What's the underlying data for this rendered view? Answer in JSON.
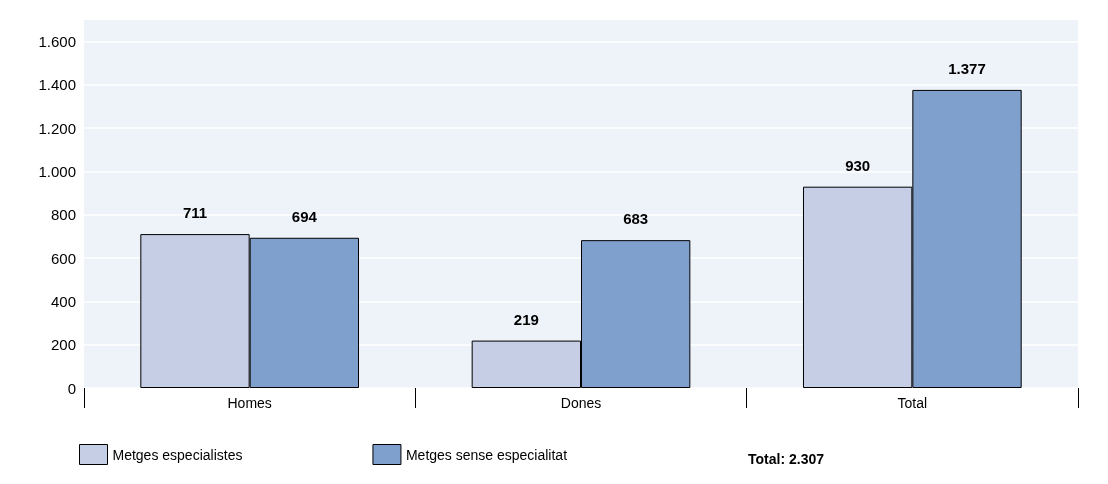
{
  "chart_data": {
    "type": "bar",
    "categories": [
      "Homes",
      "Dones",
      "Total"
    ],
    "series": [
      {
        "name": "Metges especialistes",
        "color": "#c5cee5",
        "values": [
          711,
          219,
          930
        ],
        "value_labels": [
          "711",
          "219",
          "930"
        ]
      },
      {
        "name": "Metges sense especialitat",
        "color": "#7f9fcd",
        "values": [
          694,
          683,
          1377
        ],
        "value_labels": [
          "694",
          "683",
          "1.377"
        ]
      }
    ],
    "ylim": [
      0,
      1700
    ],
    "yticks": [
      0,
      200,
      400,
      600,
      800,
      {
        "value": 1000,
        "label": "1.000"
      },
      {
        "value": 1200,
        "label": "1.200"
      },
      {
        "value": 1400,
        "label": "1.400"
      },
      {
        "value": 1600,
        "label": "1.600"
      }
    ],
    "grid": "y",
    "legend": "bottom left",
    "annotations": [
      "Total: 2.307"
    ]
  }
}
